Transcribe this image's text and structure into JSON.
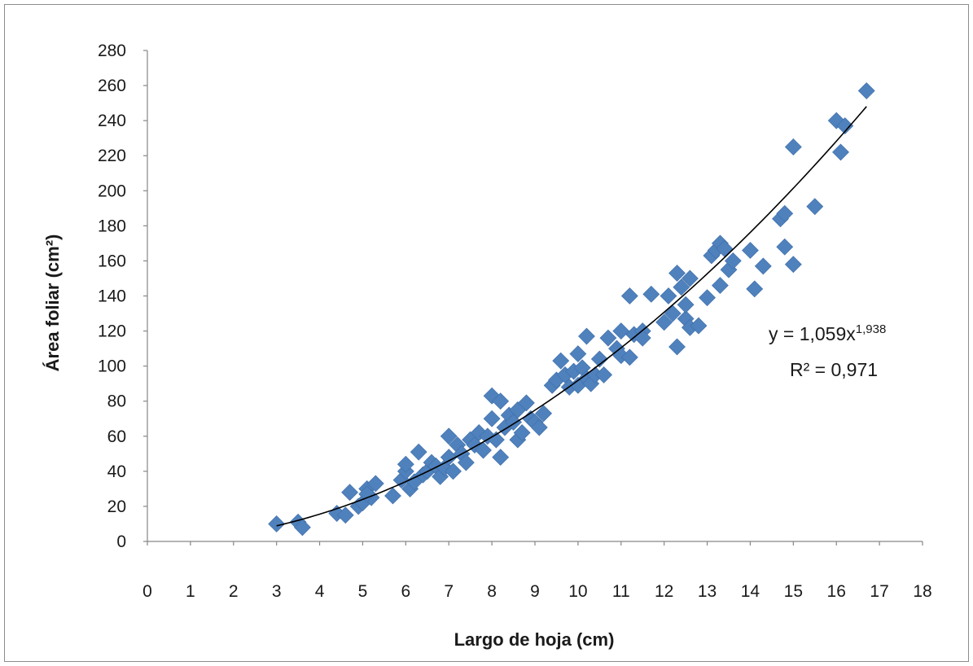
{
  "chart_data": {
    "type": "scatter",
    "title": "",
    "xlabel": "Largo de hoja  (cm)",
    "ylabel": "Área foliar  (cm²)",
    "xlim": [
      0,
      18
    ],
    "ylim": [
      0,
      280
    ],
    "xticks": [
      0,
      1,
      2,
      3,
      4,
      5,
      6,
      7,
      8,
      9,
      10,
      11,
      12,
      13,
      14,
      15,
      16,
      17,
      18
    ],
    "yticks": [
      0,
      20,
      40,
      60,
      80,
      100,
      120,
      140,
      160,
      180,
      200,
      220,
      240,
      260,
      280
    ],
    "grid": false,
    "legend": "none",
    "marker": "diamond",
    "marker_color": "#4f81bd",
    "trendline": {
      "type": "power",
      "coefficient": 1.059,
      "exponent": 1.938,
      "x_range": [
        3.0,
        16.7
      ],
      "color": "#000000",
      "equation_label": "y = 1,059x",
      "equation_exponent": "1,938",
      "r2_label": "R² = 0,971"
    },
    "points": [
      [
        3.0,
        10
      ],
      [
        3.5,
        11
      ],
      [
        3.6,
        8
      ],
      [
        4.4,
        16
      ],
      [
        4.6,
        15
      ],
      [
        4.7,
        28
      ],
      [
        4.9,
        20
      ],
      [
        5.0,
        22
      ],
      [
        5.1,
        30
      ],
      [
        5.2,
        25
      ],
      [
        5.3,
        33
      ],
      [
        5.1,
        27
      ],
      [
        5.7,
        26
      ],
      [
        5.9,
        35
      ],
      [
        6.0,
        40
      ],
      [
        6.0,
        44
      ],
      [
        6.1,
        30
      ],
      [
        6.2,
        34
      ],
      [
        6.3,
        51
      ],
      [
        6.4,
        38
      ],
      [
        6.5,
        40
      ],
      [
        6.6,
        45
      ],
      [
        6.7,
        43
      ],
      [
        6.8,
        37
      ],
      [
        6.9,
        42
      ],
      [
        7.0,
        48
      ],
      [
        7.0,
        60
      ],
      [
        7.1,
        40
      ],
      [
        7.2,
        55
      ],
      [
        7.3,
        50
      ],
      [
        7.4,
        45
      ],
      [
        7.5,
        58
      ],
      [
        7.6,
        55
      ],
      [
        7.7,
        62
      ],
      [
        7.8,
        52
      ],
      [
        7.9,
        60
      ],
      [
        8.0,
        83
      ],
      [
        8.0,
        70
      ],
      [
        8.1,
        58
      ],
      [
        8.2,
        48
      ],
      [
        8.2,
        80
      ],
      [
        8.3,
        65
      ],
      [
        8.4,
        72
      ],
      [
        8.5,
        68
      ],
      [
        8.6,
        75
      ],
      [
        8.6,
        58
      ],
      [
        8.7,
        62
      ],
      [
        8.8,
        79
      ],
      [
        8.9,
        70
      ],
      [
        9.0,
        68
      ],
      [
        9.1,
        65
      ],
      [
        9.2,
        73
      ],
      [
        9.4,
        89
      ],
      [
        9.5,
        92
      ],
      [
        9.6,
        103
      ],
      [
        9.7,
        95
      ],
      [
        9.8,
        88
      ],
      [
        9.9,
        97
      ],
      [
        10.0,
        107
      ],
      [
        10.0,
        89
      ],
      [
        10.1,
        99
      ],
      [
        10.2,
        117
      ],
      [
        10.2,
        93
      ],
      [
        10.3,
        90
      ],
      [
        10.4,
        95
      ],
      [
        10.5,
        104
      ],
      [
        10.6,
        95
      ],
      [
        10.7,
        116
      ],
      [
        10.9,
        110
      ],
      [
        11.0,
        120
      ],
      [
        11.0,
        106
      ],
      [
        11.2,
        140
      ],
      [
        11.2,
        105
      ],
      [
        11.3,
        118
      ],
      [
        11.5,
        120
      ],
      [
        11.5,
        116
      ],
      [
        11.7,
        141
      ],
      [
        12.0,
        125
      ],
      [
        12.1,
        140
      ],
      [
        12.2,
        130
      ],
      [
        12.3,
        153
      ],
      [
        12.3,
        111
      ],
      [
        12.4,
        145
      ],
      [
        12.5,
        127
      ],
      [
        12.5,
        135
      ],
      [
        12.6,
        150
      ],
      [
        12.6,
        122
      ],
      [
        12.8,
        123
      ],
      [
        13.0,
        139
      ],
      [
        13.1,
        163
      ],
      [
        13.2,
        166
      ],
      [
        13.3,
        170
      ],
      [
        13.3,
        146
      ],
      [
        13.4,
        167
      ],
      [
        13.5,
        155
      ],
      [
        13.6,
        160
      ],
      [
        14.0,
        166
      ],
      [
        14.1,
        144
      ],
      [
        14.3,
        157
      ],
      [
        14.7,
        184
      ],
      [
        14.8,
        187
      ],
      [
        14.8,
        168
      ],
      [
        15.0,
        158
      ],
      [
        15.0,
        225
      ],
      [
        15.5,
        191
      ],
      [
        16.0,
        240
      ],
      [
        16.1,
        222
      ],
      [
        16.2,
        237
      ],
      [
        16.7,
        257
      ]
    ]
  }
}
